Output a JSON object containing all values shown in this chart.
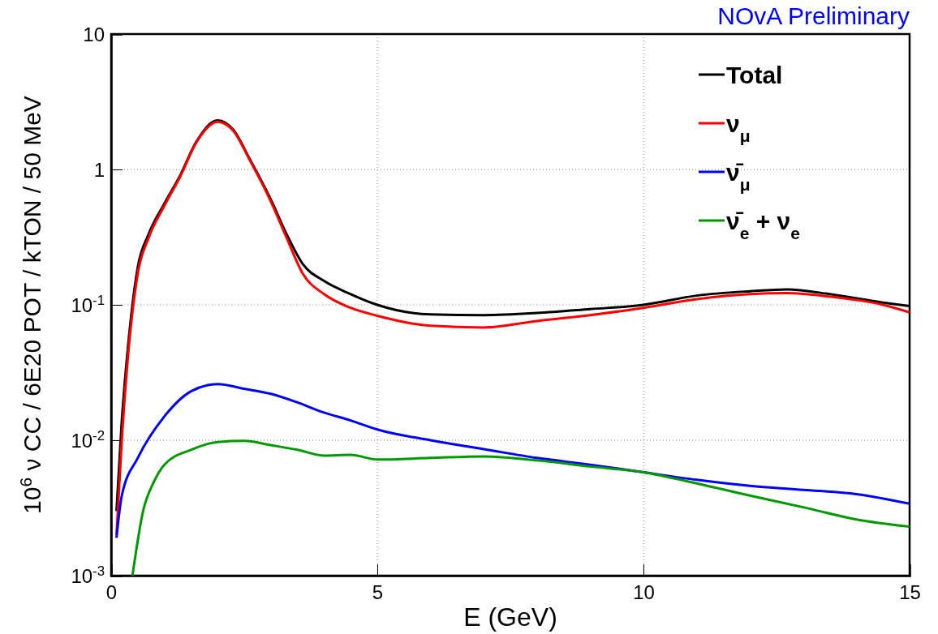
{
  "chart_data": {
    "type": "line",
    "title": "NOvA Preliminary",
    "xlabel": "E (GeV)",
    "ylabel": "10$^{6}$ ν CC / 6E20 POT / kTON / 50 MeV",
    "xlim": [
      0,
      15
    ],
    "xticks": [
      0,
      5,
      10,
      15
    ],
    "ylim": [
      0.001,
      10
    ],
    "yticks": [
      {
        "value": 0.001,
        "label": "10$^{-3}$"
      },
      {
        "value": 0.01,
        "label": "10$^{-2}$"
      },
      {
        "value": 0.1,
        "label": "10$^{-1}$"
      },
      1,
      10
    ],
    "log": true,
    "grid": true,
    "legend": "top right",
    "marker": "none",
    "line_style": "solid",
    "series": [
      {
        "name": "Total",
        "color": "#000000",
        "x": [
          0.1,
          0.2,
          0.3,
          0.5,
          0.7,
          1,
          1.3,
          1.6,
          2,
          2.3,
          2.6,
          3,
          3.3,
          3.6,
          4,
          4.5,
          5,
          6,
          7,
          8,
          9,
          10,
          11,
          12,
          12.7,
          13.5,
          14.5,
          15
        ],
        "values": [
          0.003,
          0.014,
          0.042,
          0.19,
          0.33,
          0.56,
          0.91,
          1.6,
          2.3,
          1.95,
          1.2,
          0.6,
          0.33,
          0.2,
          0.15,
          0.12,
          0.1,
          0.085,
          0.084,
          0.087,
          0.093,
          0.1,
          0.117,
          0.126,
          0.13,
          0.12,
          0.104,
          0.098
        ]
      },
      {
        "name": "ν$_{μ}$",
        "color": "#ff0000",
        "x": [
          0.1,
          0.2,
          0.3,
          0.5,
          0.7,
          1,
          1.3,
          1.6,
          2,
          2.3,
          2.6,
          3,
          3.3,
          3.6,
          4,
          4.5,
          5,
          6,
          7,
          8,
          9,
          10,
          11,
          12,
          12.7,
          13.5,
          14.5,
          15
        ],
        "values": [
          0.002,
          0.01,
          0.035,
          0.17,
          0.31,
          0.54,
          0.89,
          1.58,
          2.25,
          1.92,
          1.18,
          0.58,
          0.31,
          0.17,
          0.12,
          0.095,
          0.083,
          0.07,
          0.068,
          0.076,
          0.084,
          0.095,
          0.11,
          0.12,
          0.122,
          0.115,
          0.1,
          0.088
        ]
      },
      {
        "name": "ν̄$_{μ}$",
        "color": "#0000ff",
        "x": [
          0.1,
          0.2,
          0.5,
          1,
          1.5,
          2,
          2.5,
          3,
          3.5,
          4,
          4.5,
          5,
          6,
          7,
          8,
          9,
          10,
          11,
          12,
          13,
          14,
          15
        ],
        "values": [
          0.0019,
          0.0039,
          0.0074,
          0.015,
          0.023,
          0.026,
          0.024,
          0.022,
          0.019,
          0.016,
          0.014,
          0.012,
          0.01,
          0.0086,
          0.0074,
          0.0066,
          0.0058,
          0.0051,
          0.0046,
          0.0043,
          0.004,
          0.0034
        ]
      },
      {
        "name": "ν̄$_{e}$ + ν$_{e}$",
        "color": "#009900",
        "x": [
          0.4,
          0.6,
          0.8,
          1,
          1.5,
          2,
          2.5,
          3,
          3.5,
          4,
          4.5,
          5,
          6,
          7,
          8,
          9,
          10,
          11,
          12,
          13,
          14,
          15
        ],
        "values": [
          0.001,
          0.003,
          0.0049,
          0.0066,
          0.0085,
          0.0097,
          0.0099,
          0.0092,
          0.0085,
          0.0077,
          0.0078,
          0.0072,
          0.0074,
          0.0076,
          0.0071,
          0.0064,
          0.0058,
          0.0048,
          0.0039,
          0.0032,
          0.0026,
          0.0023
        ]
      }
    ]
  }
}
